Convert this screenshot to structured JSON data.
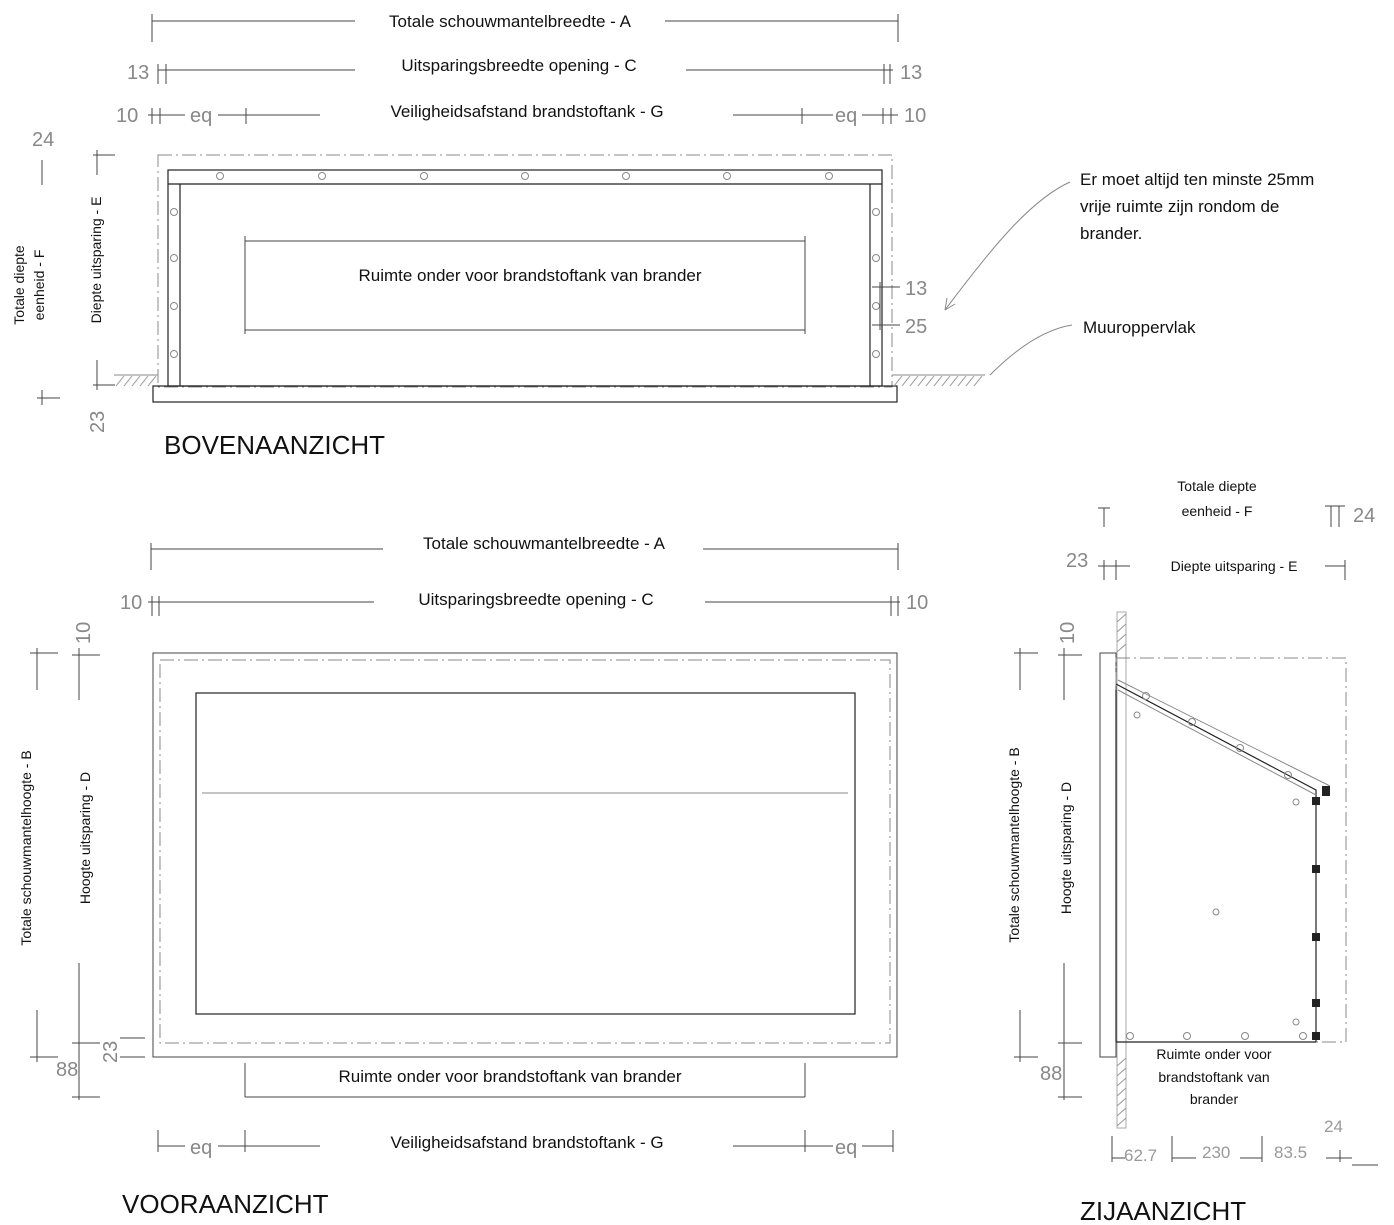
{
  "top_view": {
    "title": "BOVENAANZICHT",
    "dim_total_width": "Totale schouwmantelbreedte - A",
    "dim_opening_width": "Uitsparingsbreedte opening - C",
    "dim_safety": "Veiligheidsafstand brandstoftank - G",
    "dim_depth_recess": "Diepte uitsparing - E",
    "dim_total_depth_line1": "Totale diepte",
    "dim_total_depth_line2": "eenheid - F",
    "tank_space": "Ruimte onder voor brandstoftank van brander",
    "eq": "eq",
    "n13": "13",
    "n10": "10",
    "n24": "24",
    "n23": "23",
    "n25": "25"
  },
  "notes": {
    "clearance_line1": "Er moet altijd ten minste 25mm",
    "clearance_line2": "vrije ruimte zijn rondom de",
    "clearance_line3": "brander.",
    "wall": "Muuroppervlak"
  },
  "front_view": {
    "title": "VOORAANZICHT",
    "dim_total_width": "Totale schouwmantelbreedte - A",
    "dim_opening_width": "Uitsparingsbreedte opening - C",
    "dim_total_height": "Totale schouwmantelhoogte - B",
    "dim_recess_height": "Hoogte uitsparing - D",
    "tank_space": "Ruimte onder voor brandstoftank van brander",
    "dim_safety": "Veiligheidsafstand brandstoftank - G",
    "eq": "eq",
    "n10": "10",
    "n23": "23",
    "n88": "88"
  },
  "side_view": {
    "title": "ZIJAANZICHT",
    "dim_total_depth_line1": "Totale diepte",
    "dim_total_depth_line2": "eenheid - F",
    "dim_depth_recess": "Diepte uitsparing - E",
    "dim_total_height": "Totale schouwmantelhoogte - B",
    "dim_recess_height": "Hoogte uitsparing - D",
    "tank_line1": "Ruimte onder voor",
    "tank_line2": "brandstoftank van",
    "tank_line3": "brander",
    "n24": "24",
    "n23": "23",
    "n10": "10",
    "n88": "88",
    "n62_7": "62.7",
    "n230": "230",
    "n83_5": "83.5"
  }
}
